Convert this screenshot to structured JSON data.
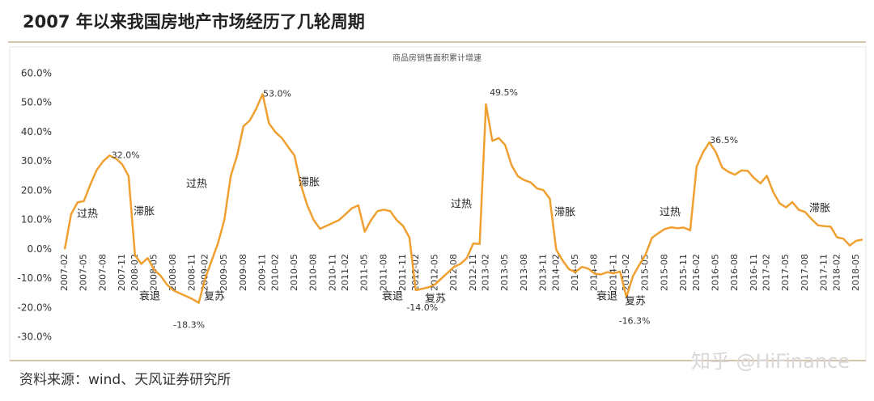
{
  "chart_data": {
    "type": "line",
    "title": "2007 年以来我国房地产市场经历了几轮周期",
    "subtitle": "商品房销售面积累计增速",
    "source": "资料来源：wind、天风证券研究所",
    "watermark": "知乎 @HiFinance",
    "categories": [
      "2007-02",
      null,
      null,
      "2007-05",
      null,
      null,
      "2007-08",
      null,
      null,
      "2007-11",
      null,
      "2008-02",
      null,
      null,
      "2008-05",
      null,
      null,
      "2008-08",
      null,
      null,
      "2008-11",
      null,
      "2009-02",
      null,
      null,
      "2009-05",
      null,
      null,
      "2009-08",
      null,
      null,
      "2009-11",
      null,
      "2010-02",
      null,
      null,
      "2010-05",
      null,
      null,
      "2010-08",
      null,
      null,
      "2010-11",
      null,
      "2011-02",
      null,
      null,
      "2011-05",
      null,
      null,
      "2011-08",
      null,
      null,
      "2011-11",
      null,
      "2012-02",
      null,
      null,
      "2012-05",
      null,
      null,
      "2012-08",
      null,
      null,
      "2012-11",
      null,
      "2013-02",
      null,
      null,
      "2013-05",
      null,
      null,
      "2013-08",
      null,
      null,
      "2013-11",
      null,
      "2014-02",
      null,
      null,
      "2014-05",
      null,
      null,
      "2014-08",
      null,
      null,
      "2014-11",
      null,
      "2015-02",
      null,
      null,
      "2015-05",
      null,
      null,
      "2015-08",
      null,
      null,
      "2015-11",
      null,
      "2016-02",
      null,
      null,
      "2016-05",
      null,
      null,
      "2016-08",
      null,
      null,
      "2016-11",
      null,
      "2017-02",
      null,
      null,
      "2017-05",
      null,
      null,
      "2017-08",
      null,
      null,
      "2017-11",
      null,
      "2018-02",
      null,
      null,
      "2018-05",
      null
    ],
    "series": [
      {
        "name": "商品房销售面积累计增速",
        "color": "#f0a030",
        "values": [
          0,
          12,
          16,
          16.5,
          22,
          27,
          30,
          32,
          31,
          29,
          25,
          -2,
          -5,
          -3,
          -7,
          -9,
          -12,
          -14,
          -15,
          -16,
          -17,
          -18.3,
          -10,
          -4,
          2,
          10,
          25,
          32,
          42,
          44,
          48,
          53,
          43,
          40,
          38,
          35,
          32,
          22,
          15,
          10,
          7,
          8,
          9,
          10,
          12,
          14,
          15,
          6,
          10,
          13,
          13.5,
          13,
          10,
          8,
          4,
          -14,
          -13.5,
          -13,
          -12,
          -10,
          -8,
          -6,
          -5,
          -3,
          2,
          1.8,
          49.5,
          37,
          38,
          35.6,
          28.7,
          24.9,
          23.6,
          22.8,
          20.8,
          20.2,
          17.3,
          -0.1,
          -3.8,
          -6.8,
          -7.8,
          -6,
          -6.6,
          -8.3,
          -8.6,
          -7.8,
          -8.2,
          -7.6,
          -16.3,
          -9.2,
          -5.4,
          -1.8,
          3.9,
          5.5,
          6.9,
          7.5,
          7.2,
          7.4,
          6.5,
          28.2,
          33.1,
          36.5,
          33.2,
          27.9,
          26.4,
          25.5,
          26.9,
          26.8,
          24.3,
          22.5,
          25.1,
          19.5,
          15.7,
          14.3,
          16.1,
          13.5,
          12.7,
          10.3,
          8.2,
          7.9,
          7.7,
          4.1,
          3.6,
          1.3,
          2.9,
          3.3
        ],
        "value_labels": [
          null,
          null,
          null,
          null,
          null,
          null,
          null,
          "32.0%",
          null,
          null,
          null,
          null,
          null,
          null,
          null,
          null,
          null,
          null,
          null,
          null,
          null,
          "-18.3%",
          null,
          null,
          null,
          null,
          null,
          null,
          null,
          null,
          null,
          "53.0%",
          null,
          null,
          null,
          null,
          null,
          null,
          null,
          null,
          null,
          null,
          null,
          null,
          null,
          null,
          null,
          null,
          null,
          null,
          null,
          null,
          null,
          null,
          null,
          "-14.0%",
          null,
          null,
          null,
          null,
          null,
          null,
          null,
          null,
          null,
          null,
          "49.5%",
          null,
          null,
          null,
          null,
          null,
          null,
          null,
          null,
          null,
          null,
          null,
          null,
          null,
          null,
          null,
          null,
          null,
          null,
          null,
          null,
          null,
          "-16.3%",
          null,
          null,
          null,
          null,
          null,
          null,
          null,
          null,
          null,
          null,
          null,
          null,
          "36.5%",
          null,
          null,
          null,
          null,
          null,
          null,
          null,
          null,
          null,
          null,
          null,
          null,
          null,
          null,
          null,
          null,
          null,
          null,
          null,
          null,
          null,
          null,
          null,
          null
        ]
      }
    ],
    "phase_labels": [
      "过热",
      "滞胀",
      "衰退",
      "复苏",
      "过热",
      "滞胀",
      "衰退",
      "复苏",
      "过热",
      "滞胀",
      "衰退",
      "复苏",
      "过热",
      "滞胀"
    ],
    "ylim": [
      -30,
      60
    ],
    "yticks": [
      {
        "value": -30,
        "label": "-30.0%"
      },
      {
        "value": -20,
        "label": "-20.0%"
      },
      {
        "value": -10,
        "label": "-10.0%"
      },
      {
        "value": 0,
        "label": "0.0%"
      },
      {
        "value": 10,
        "label": "10.0%"
      },
      {
        "value": 20,
        "label": "20.0%"
      },
      {
        "value": 30,
        "label": "30.0%"
      },
      {
        "value": 40,
        "label": "40.0%"
      },
      {
        "value": 50,
        "label": "50.0%"
      },
      {
        "value": 60,
        "label": "60.0%"
      }
    ],
    "grid": false
  }
}
